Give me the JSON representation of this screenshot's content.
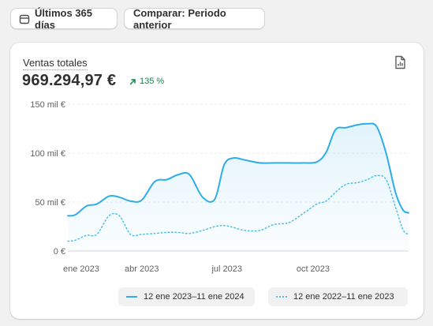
{
  "toolbar": {
    "date_range_label": "Últimos 365 días",
    "compare_label": "Comparar: Periodo anterior"
  },
  "metric": {
    "label": "Ventas totales",
    "value": "969.294,97 €",
    "change": "135 %",
    "change_direction": "up",
    "change_color": "#0c8a4d"
  },
  "icons": {
    "date_range": "calendar-icon",
    "change": "arrow-up-right-icon",
    "export": "export-report-icon"
  },
  "chart_data": {
    "type": "area",
    "y_ticks": [
      "150 mil €",
      "100 mil €",
      "50 mil €",
      "0 €"
    ],
    "y_tick_values": [
      150000,
      100000,
      50000,
      0
    ],
    "x_ticks": [
      "ene 2023",
      "abr 2023",
      "jul 2023",
      "oct 2023"
    ],
    "ylim": [
      0,
      150000
    ],
    "grid": true,
    "legend_position": "bottom-right",
    "series": [
      {
        "name": "12 ene 2023–11 ene 2024",
        "style": "solid-area",
        "color": "#2eaee5",
        "x": [
          "2023-01-12",
          "2023-01-20",
          "2023-02-01",
          "2023-02-12",
          "2023-02-25",
          "2023-03-08",
          "2023-03-20",
          "2023-04-01",
          "2023-04-15",
          "2023-04-28",
          "2023-05-10",
          "2023-05-22",
          "2023-06-05",
          "2023-06-18",
          "2023-06-28",
          "2023-07-08",
          "2023-07-20",
          "2023-08-05",
          "2023-08-20",
          "2023-09-05",
          "2023-09-20",
          "2023-10-05",
          "2023-10-15",
          "2023-10-25",
          "2023-11-05",
          "2023-11-18",
          "2023-11-28",
          "2023-12-08",
          "2023-12-18",
          "2023-12-28",
          "2024-01-05",
          "2024-01-11"
        ],
        "values": [
          36000,
          37000,
          46000,
          48000,
          56000,
          55000,
          51000,
          52000,
          71000,
          73000,
          78000,
          78000,
          55000,
          53000,
          88000,
          95000,
          93000,
          90000,
          90000,
          90000,
          90000,
          91000,
          101000,
          124000,
          126000,
          129000,
          130000,
          127000,
          100000,
          60000,
          42000,
          39000
        ]
      },
      {
        "name": "12 ene 2022–11 ene 2023",
        "style": "dotted",
        "color": "#55bce6",
        "x": [
          "2023-01-12",
          "2023-01-20",
          "2023-02-01",
          "2023-02-12",
          "2023-02-25",
          "2023-03-08",
          "2023-03-20",
          "2023-04-01",
          "2023-04-15",
          "2023-04-28",
          "2023-05-10",
          "2023-05-22",
          "2023-06-05",
          "2023-06-18",
          "2023-06-28",
          "2023-07-08",
          "2023-07-20",
          "2023-08-05",
          "2023-08-20",
          "2023-09-05",
          "2023-09-20",
          "2023-10-05",
          "2023-10-15",
          "2023-10-25",
          "2023-11-05",
          "2023-11-18",
          "2023-11-28",
          "2023-12-08",
          "2023-12-18",
          "2023-12-28",
          "2024-01-05",
          "2024-01-11"
        ],
        "values": [
          10000,
          11000,
          16000,
          17000,
          36000,
          36000,
          17000,
          17000,
          18000,
          19000,
          19000,
          18000,
          21000,
          25000,
          26000,
          24000,
          21000,
          21000,
          27000,
          29000,
          38000,
          48000,
          51000,
          60000,
          68000,
          70000,
          73000,
          77000,
          73000,
          45000,
          22000,
          17000
        ]
      }
    ]
  }
}
